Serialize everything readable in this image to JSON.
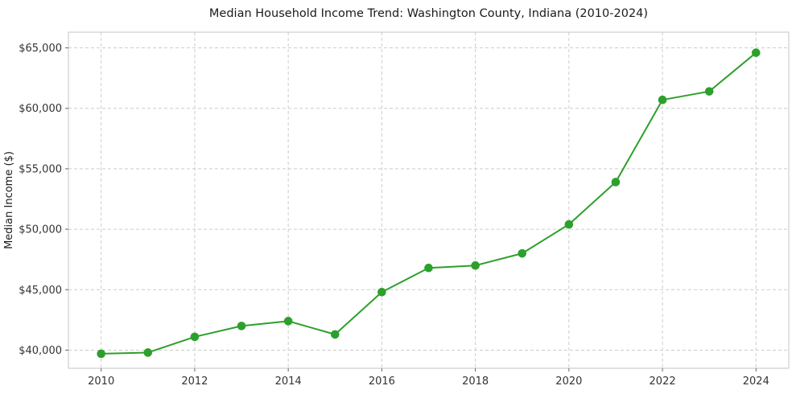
{
  "chart_data": {
    "type": "line",
    "title": "Median Household Income Trend: Washington County, Indiana (2010-2024)",
    "xlabel": "",
    "ylabel": "Median Income ($)",
    "series_name": "Median Household Income",
    "x": [
      2010,
      2011,
      2012,
      2013,
      2014,
      2015,
      2016,
      2017,
      2018,
      2019,
      2020,
      2021,
      2022,
      2023,
      2024
    ],
    "values": [
      39700,
      39800,
      41100,
      42000,
      42400,
      41300,
      44800,
      46800,
      47000,
      48000,
      50400,
      53900,
      60700,
      61400,
      64600
    ],
    "xticks": [
      2010,
      2012,
      2014,
      2016,
      2018,
      2020,
      2022,
      2024
    ],
    "yticks": [
      40000,
      45000,
      50000,
      55000,
      60000,
      65000
    ],
    "ytick_prefix": "$",
    "xlim": [
      2009.3,
      2024.7
    ],
    "ylim": [
      38500,
      66300
    ],
    "grid": true,
    "grid_style": "dashed",
    "legend_position": "none",
    "line_color": "#2ca02c",
    "marker": "circle",
    "grid_color": "#cccccc",
    "axis_color": "#c4c4c4",
    "tick_color": "#666666"
  }
}
